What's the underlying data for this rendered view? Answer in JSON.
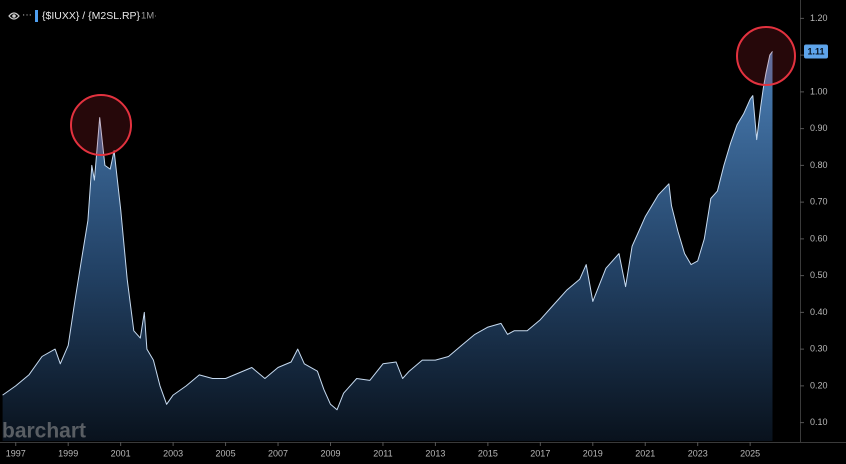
{
  "chart_data": {
    "type": "area",
    "title": "{$IUXX} / {M2SL.RP}",
    "interval": "1M",
    "watermark": "barchart",
    "line_color": "#c6daf0",
    "fill_color": "#4f86c0",
    "x": [
      1996.5,
      1997.0,
      1997.5,
      1998.0,
      1998.5,
      1998.7,
      1999.0,
      1999.25,
      1999.5,
      1999.75,
      1999.9,
      2000.0,
      2000.2,
      2000.4,
      2000.6,
      2000.75,
      2001.0,
      2001.25,
      2001.5,
      2001.75,
      2001.9,
      2002.0,
      2002.25,
      2002.5,
      2002.75,
      2003.0,
      2003.5,
      2004.0,
      2004.5,
      2005.0,
      2005.5,
      2006.0,
      2006.5,
      2007.0,
      2007.5,
      2007.75,
      2008.0,
      2008.5,
      2008.75,
      2009.0,
      2009.25,
      2009.5,
      2010.0,
      2010.5,
      2011.0,
      2011.5,
      2011.75,
      2012.0,
      2012.5,
      2013.0,
      2013.5,
      2014.0,
      2014.5,
      2015.0,
      2015.5,
      2015.75,
      2016.0,
      2016.5,
      2017.0,
      2017.5,
      2018.0,
      2018.5,
      2018.75,
      2019.0,
      2019.5,
      2020.0,
      2020.25,
      2020.5,
      2020.75,
      2021.0,
      2021.25,
      2021.5,
      2021.9,
      2022.0,
      2022.25,
      2022.5,
      2022.75,
      2023.0,
      2023.25,
      2023.5,
      2023.75,
      2024.0,
      2024.25,
      2024.5,
      2024.75,
      2025.0,
      2025.1,
      2025.25,
      2025.4,
      2025.5,
      2025.6,
      2025.75,
      2025.85
    ],
    "values": [
      0.175,
      0.2,
      0.23,
      0.28,
      0.3,
      0.26,
      0.31,
      0.43,
      0.54,
      0.65,
      0.8,
      0.76,
      0.93,
      0.8,
      0.79,
      0.84,
      0.68,
      0.49,
      0.35,
      0.33,
      0.4,
      0.3,
      0.27,
      0.2,
      0.15,
      0.175,
      0.2,
      0.23,
      0.22,
      0.22,
      0.235,
      0.25,
      0.22,
      0.25,
      0.265,
      0.3,
      0.26,
      0.24,
      0.19,
      0.15,
      0.135,
      0.18,
      0.22,
      0.215,
      0.26,
      0.265,
      0.22,
      0.24,
      0.27,
      0.27,
      0.28,
      0.31,
      0.34,
      0.36,
      0.37,
      0.34,
      0.35,
      0.35,
      0.38,
      0.42,
      0.46,
      0.49,
      0.53,
      0.43,
      0.52,
      0.56,
      0.47,
      0.58,
      0.62,
      0.66,
      0.69,
      0.72,
      0.75,
      0.69,
      0.62,
      0.56,
      0.53,
      0.54,
      0.6,
      0.71,
      0.73,
      0.8,
      0.86,
      0.91,
      0.94,
      0.98,
      0.99,
      0.87,
      0.96,
      1.01,
      1.05,
      1.1,
      1.11
    ],
    "xlim": [
      1996.4,
      2026.9
    ],
    "xticks": [
      1997,
      1999,
      2001,
      2003,
      2005,
      2007,
      2009,
      2011,
      2013,
      2015,
      2017,
      2019,
      2021,
      2023,
      2025
    ],
    "ylim": [
      0.05,
      1.25
    ],
    "yticks": [
      {
        "value": 0.1,
        "label": "0.10"
      },
      {
        "value": 0.2,
        "label": "0.20"
      },
      {
        "value": 0.3,
        "label": "0.30"
      },
      {
        "value": 0.4,
        "label": "0.40"
      },
      {
        "value": 0.5,
        "label": "0.50"
      },
      {
        "value": 0.6,
        "label": "0.60"
      },
      {
        "value": 0.7,
        "label": "0.70"
      },
      {
        "value": 0.8,
        "label": "0.80"
      },
      {
        "value": 0.9,
        "label": "0.90"
      },
      {
        "value": 1.0,
        "label": "1.00"
      },
      {
        "value": 1.1,
        "label": "1.10"
      },
      {
        "value": 1.2,
        "label": "1.20"
      }
    ],
    "last_price": {
      "value": 1.11,
      "label": "1.11"
    },
    "grid": false
  }
}
